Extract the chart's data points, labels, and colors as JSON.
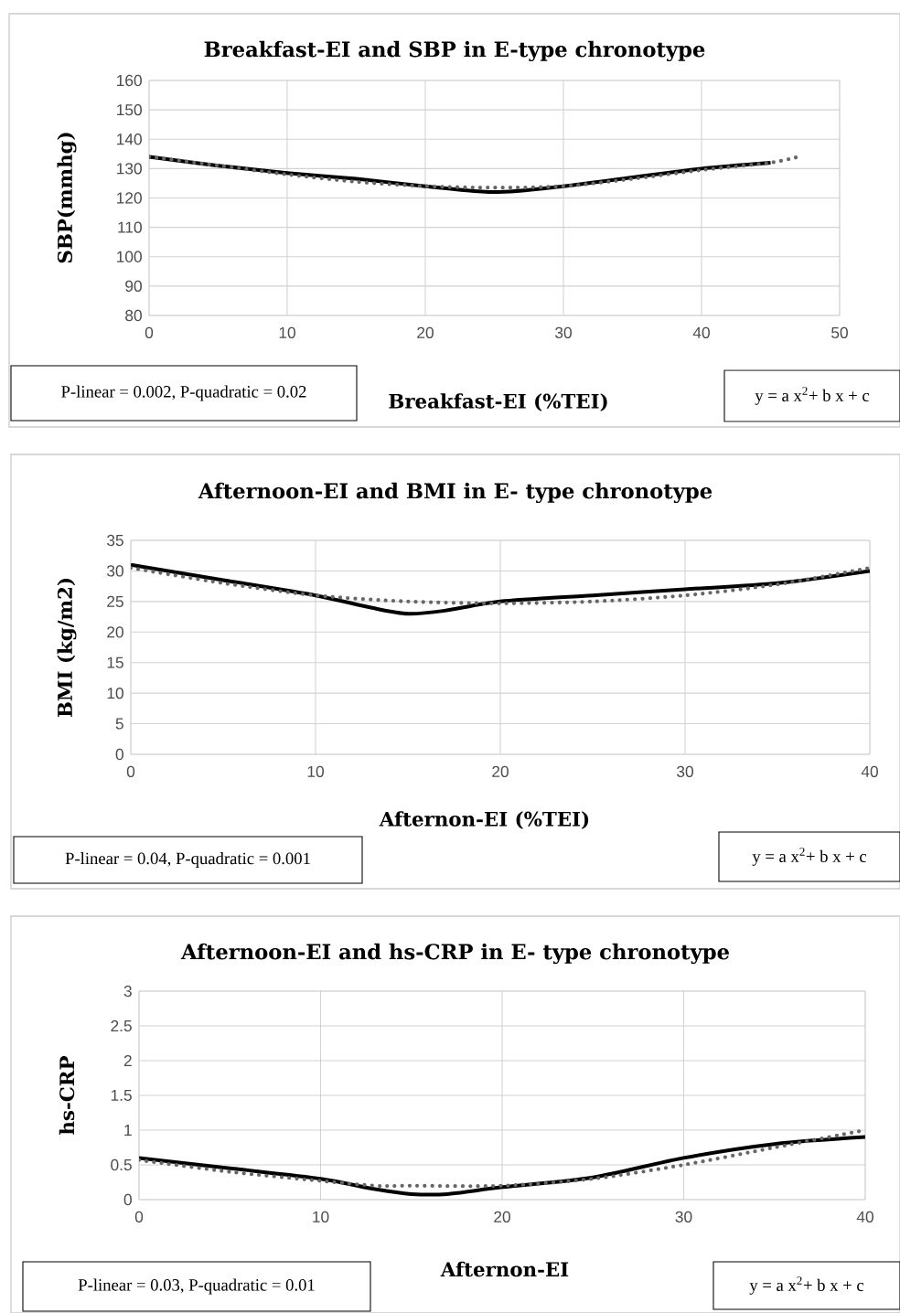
{
  "chart_data": [
    {
      "type": "line",
      "title": "Breakfast-EI and SBP in E-type chronotype",
      "xlabel": "Breakfast-EI (%TEI)",
      "ylabel": "SBP(mmhg)",
      "annotations": [
        "P-linear = 0.002, P-quadratic = 0.02",
        "y = a x$^{2}$+ b x + c"
      ],
      "series": [
        {
          "color": "#000000",
          "line_style": "solid",
          "x": [
            0,
            5,
            10,
            15,
            20,
            25,
            30,
            35,
            40,
            45
          ],
          "values": [
            134,
            131,
            128.5,
            126.5,
            124,
            122,
            124,
            127,
            130,
            132
          ]
        },
        {
          "color": "#666666",
          "line_style": "dotted",
          "x": [
            0,
            5,
            10,
            15,
            20,
            25,
            30,
            35,
            40,
            45,
            47
          ],
          "values": [
            134,
            131,
            128,
            125.5,
            124,
            123.5,
            124,
            126.5,
            129.5,
            132,
            134
          ]
        }
      ],
      "xlim": [
        0,
        50
      ],
      "ylim": [
        80,
        160
      ],
      "xticks": [
        0,
        10,
        20,
        30,
        40,
        50
      ],
      "yticks": [
        80,
        90,
        100,
        110,
        120,
        130,
        140,
        150,
        160
      ],
      "grid": true,
      "marker": "none"
    },
    {
      "type": "line",
      "title": "Afternoon-EI and BMI in E- type chronotype",
      "xlabel": "Afternon-EI (%TEI)",
      "ylabel": "BMI (kg/m2)",
      "annotations": [
        "P-linear = 0.04, P-quadratic = 0.001",
        "y = a x$^{2}$+ b x + c"
      ],
      "series": [
        {
          "color": "#000000",
          "line_style": "solid",
          "x": [
            0,
            5,
            10,
            13,
            15,
            17,
            20,
            25,
            30,
            35,
            40
          ],
          "values": [
            31,
            28.5,
            26,
            24,
            23,
            23.5,
            25,
            26,
            27,
            28,
            30
          ]
        },
        {
          "color": "#666666",
          "line_style": "dotted",
          "x": [
            0,
            5,
            10,
            15,
            20,
            25,
            30,
            35,
            40
          ],
          "values": [
            30.5,
            28,
            26,
            25,
            24.7,
            25,
            26,
            27.8,
            30.5
          ]
        }
      ],
      "xlim": [
        0,
        40
      ],
      "ylim": [
        0,
        35
      ],
      "xticks": [
        0,
        10,
        20,
        30,
        40
      ],
      "yticks": [
        0,
        5,
        10,
        15,
        20,
        25,
        30,
        35
      ],
      "grid": true,
      "marker": "none"
    },
    {
      "type": "line",
      "title": "Afternoon-EI and hs-CRP in E- type chronotype",
      "xlabel": "Afternon-EI",
      "ylabel": "hs-CRP",
      "annotations": [
        "P-linear = 0.03, P-quadratic = 0.01",
        "y = a x$^{2}$+ b x + c"
      ],
      "series": [
        {
          "color": "#000000",
          "line_style": "solid",
          "x": [
            0,
            5,
            10,
            13,
            15,
            17,
            20,
            25,
            30,
            35,
            40
          ],
          "values": [
            0.6,
            0.45,
            0.3,
            0.15,
            0.08,
            0.08,
            0.18,
            0.32,
            0.6,
            0.8,
            0.9
          ]
        },
        {
          "color": "#666666",
          "line_style": "dotted",
          "x": [
            0,
            5,
            10,
            13,
            15,
            20,
            25,
            30,
            35,
            40
          ],
          "values": [
            0.57,
            0.4,
            0.27,
            0.2,
            0.2,
            0.2,
            0.3,
            0.5,
            0.75,
            1.0
          ]
        }
      ],
      "xlim": [
        0,
        40
      ],
      "ylim": [
        0,
        3
      ],
      "xticks": [
        0,
        10,
        20,
        30,
        40
      ],
      "yticks": [
        0,
        0.5,
        1,
        1.5,
        2,
        2.5,
        3
      ],
      "grid": true,
      "marker": "none"
    }
  ]
}
